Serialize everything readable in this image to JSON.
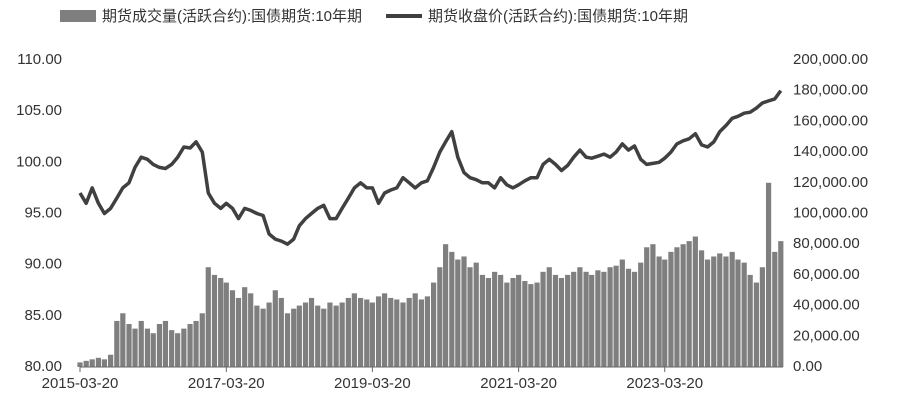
{
  "chart_data": {
    "type": "bar-line",
    "x": [
      "2015-03-20",
      "2015-04-20",
      "2015-05-20",
      "2015-06-20",
      "2015-07-20",
      "2015-08-20",
      "2015-09-20",
      "2015-10-20",
      "2015-11-20",
      "2015-12-20",
      "2016-01-20",
      "2016-02-20",
      "2016-03-20",
      "2016-04-20",
      "2016-05-20",
      "2016-06-20",
      "2016-07-20",
      "2016-08-20",
      "2016-09-20",
      "2016-10-20",
      "2016-11-20",
      "2016-12-20",
      "2017-01-20",
      "2017-02-20",
      "2017-03-20",
      "2017-04-20",
      "2017-05-20",
      "2017-06-20",
      "2017-07-20",
      "2017-08-20",
      "2017-09-20",
      "2017-10-20",
      "2017-11-20",
      "2017-12-20",
      "2018-01-20",
      "2018-02-20",
      "2018-03-20",
      "2018-04-20",
      "2018-05-20",
      "2018-06-20",
      "2018-07-20",
      "2018-08-20",
      "2018-09-20",
      "2018-10-20",
      "2018-11-20",
      "2018-12-20",
      "2019-01-20",
      "2019-02-20",
      "2019-03-20",
      "2019-04-20",
      "2019-05-20",
      "2019-06-20",
      "2019-07-20",
      "2019-08-20",
      "2019-09-20",
      "2019-10-20",
      "2019-11-20",
      "2019-12-20",
      "2020-01-20",
      "2020-02-20",
      "2020-03-20",
      "2020-04-20",
      "2020-05-20",
      "2020-06-20",
      "2020-07-20",
      "2020-08-20",
      "2020-09-20",
      "2020-10-20",
      "2020-11-20",
      "2020-12-20",
      "2021-01-20",
      "2021-02-20",
      "2021-03-20",
      "2021-04-20",
      "2021-05-20",
      "2021-06-20",
      "2021-07-20",
      "2021-08-20",
      "2021-09-20",
      "2021-10-20",
      "2021-11-20",
      "2021-12-20",
      "2022-01-20",
      "2022-02-20",
      "2022-03-20",
      "2022-04-20",
      "2022-05-20",
      "2022-06-20",
      "2022-07-20",
      "2022-08-20",
      "2022-09-20",
      "2022-10-20",
      "2022-11-20",
      "2022-12-20",
      "2023-01-20",
      "2023-02-20",
      "2023-03-20",
      "2023-04-20",
      "2023-05-20",
      "2023-06-20",
      "2023-07-20",
      "2023-08-20",
      "2023-09-20",
      "2023-10-20",
      "2023-11-20",
      "2023-12-20",
      "2024-01-20",
      "2024-02-20",
      "2024-03-20",
      "2024-04-20",
      "2024-05-20",
      "2024-06-20",
      "2024-07-20",
      "2024-08-20",
      "2024-09-20",
      "2024-10-20"
    ],
    "series": [
      {
        "name": "期货成交量(活跃合约):国债期货:10年期",
        "color": "#7f7f7f",
        "axis": "y2",
        "kind": "bar",
        "values": [
          3000,
          4000,
          5000,
          6000,
          5000,
          8000,
          30000,
          35000,
          28000,
          25000,
          30000,
          25000,
          22000,
          28000,
          30000,
          24000,
          22000,
          25000,
          28000,
          30000,
          35000,
          65000,
          60000,
          58000,
          55000,
          50000,
          45000,
          52000,
          48000,
          40000,
          38000,
          42000,
          50000,
          45000,
          35000,
          38000,
          40000,
          42000,
          45000,
          40000,
          38000,
          42000,
          40000,
          42000,
          45000,
          48000,
          45000,
          44000,
          42000,
          46000,
          48000,
          45000,
          44000,
          42000,
          45000,
          48000,
          44000,
          46000,
          55000,
          65000,
          80000,
          75000,
          70000,
          72000,
          65000,
          68000,
          60000,
          58000,
          62000,
          60000,
          55000,
          58000,
          60000,
          56000,
          54000,
          55000,
          62000,
          65000,
          60000,
          58000,
          60000,
          62000,
          65000,
          62000,
          60000,
          63000,
          62000,
          65000,
          66000,
          70000,
          64000,
          62000,
          68000,
          78000,
          80000,
          72000,
          70000,
          75000,
          78000,
          80000,
          82000,
          85000,
          76000,
          70000,
          72000,
          74000,
          72000,
          75000,
          70000,
          68000,
          60000,
          55000,
          65000,
          120000,
          75000,
          82000
        ]
      },
      {
        "name": "期货收盘价(活跃合约):国债期货:10年期",
        "color": "#404040",
        "axis": "y",
        "kind": "line",
        "values": [
          97,
          96,
          97.5,
          96,
          95,
          95.5,
          96.5,
          97.5,
          98,
          99.5,
          100.5,
          100.3,
          99.8,
          99.5,
          99.4,
          99.8,
          100.5,
          101.5,
          101.4,
          102,
          101,
          97,
          96,
          95.5,
          96,
          95.5,
          94.5,
          95.5,
          95.3,
          95,
          94.8,
          93,
          92.5,
          92.3,
          92,
          92.5,
          93.8,
          94.5,
          95,
          95.5,
          95.8,
          94.5,
          94.5,
          95.5,
          96.5,
          97.5,
          98,
          97.5,
          97.5,
          96,
          97,
          97.3,
          97.5,
          98.5,
          98,
          97.5,
          98,
          98.2,
          99.5,
          101,
          102,
          103,
          100.5,
          99,
          98.5,
          98.3,
          98,
          98,
          97.5,
          98.5,
          97.8,
          97.5,
          97.8,
          98.2,
          98.5,
          98.5,
          99.8,
          100.3,
          99.8,
          99.2,
          99.7,
          100.5,
          101.2,
          100.5,
          100.4,
          100.6,
          100.8,
          100.5,
          101,
          101.8,
          101.2,
          101.6,
          100.3,
          99.8,
          99.9,
          100,
          100.4,
          101,
          101.8,
          102.1,
          102.3,
          102.8,
          101.7,
          101.5,
          102,
          103,
          103.6,
          104.3,
          104.5,
          104.8,
          104.9,
          105.3,
          105.8,
          106,
          106.2,
          107
        ]
      }
    ],
    "xlim": [
      "2015-03-20",
      "2024-10-31"
    ],
    "xticks": [
      "2015-03-20",
      "2017-03-20",
      "2019-03-20",
      "2021-03-20",
      "2023-03-20"
    ],
    "ylim": [
      80,
      110
    ],
    "yticks": [
      {
        "value": 80,
        "label": "80.00"
      },
      {
        "value": 85,
        "label": "85.00"
      },
      {
        "value": 90,
        "label": "90.00"
      },
      {
        "value": 95,
        "label": "95.00"
      },
      {
        "value": 100,
        "label": "100.00"
      },
      {
        "value": 105,
        "label": "105.00"
      },
      {
        "value": 110,
        "label": "110.00"
      }
    ],
    "y2lim": [
      0,
      200000
    ],
    "y2ticks": [
      {
        "value": 0,
        "label": "0.00"
      },
      {
        "value": 20000,
        "label": "20,000.00"
      },
      {
        "value": 40000,
        "label": "40,000.00"
      },
      {
        "value": 60000,
        "label": "60,000.00"
      },
      {
        "value": 80000,
        "label": "80,000.00"
      },
      {
        "value": 100000,
        "label": "100,000.00"
      },
      {
        "value": 120000,
        "label": "120,000.00"
      },
      {
        "value": 140000,
        "label": "140,000.00"
      },
      {
        "value": 160000,
        "label": "160,000.00"
      },
      {
        "value": 180000,
        "label": "180,000.00"
      },
      {
        "value": 200000,
        "label": "200,000.00"
      }
    ],
    "grid": false,
    "legend": "top"
  }
}
